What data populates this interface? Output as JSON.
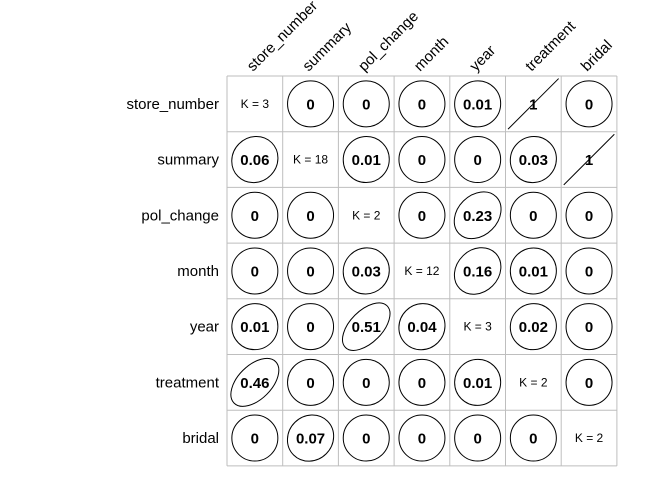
{
  "chart_data": {
    "type": "heatmap",
    "description_key": "pairwise association matrix; ellipse shape encodes association strength",
    "variables": [
      "store_number",
      "summary",
      "pol_change",
      "month",
      "year",
      "treatment",
      "bridal"
    ],
    "diagonal": [
      "K = 3",
      "K = 18",
      "K = 2",
      "K = 12",
      "K = 3",
      "K = 2",
      "K = 2"
    ],
    "matrix": [
      [
        null,
        0,
        0,
        0,
        0.01,
        1,
        0
      ],
      [
        0.06,
        null,
        0.01,
        0,
        0,
        0.03,
        1
      ],
      [
        0,
        0,
        null,
        0,
        0.23,
        0,
        0
      ],
      [
        0,
        0,
        0.03,
        null,
        0.16,
        0.01,
        0
      ],
      [
        0.01,
        0,
        0.51,
        0.04,
        null,
        0.02,
        0
      ],
      [
        0.46,
        0,
        0,
        0,
        0.01,
        null,
        0
      ],
      [
        0,
        0.07,
        0,
        0,
        0,
        0,
        null
      ]
    ],
    "labels": [
      [
        null,
        "0",
        "0",
        "0",
        "0.01",
        "1",
        "0"
      ],
      [
        "0.06",
        null,
        "0.01",
        "0",
        "0",
        "0.03",
        "1"
      ],
      [
        "0",
        "0",
        null,
        "0",
        "0.23",
        "0",
        "0"
      ],
      [
        "0",
        "0",
        "0.03",
        null,
        "0.16",
        "0.01",
        "0"
      ],
      [
        "0.01",
        "0",
        "0.51",
        "0.04",
        null,
        "0.02",
        "0"
      ],
      [
        "0.46",
        "0",
        "0",
        "0",
        "0.01",
        null,
        "0"
      ],
      [
        "0",
        "0.07",
        "0",
        "0",
        "0",
        "0",
        null
      ]
    ],
    "grid": true
  }
}
